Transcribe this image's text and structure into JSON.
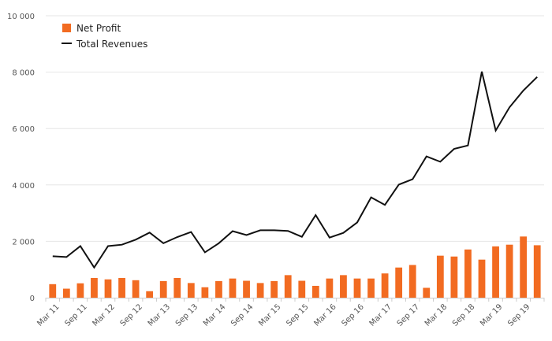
{
  "chart_data": {
    "type": "bar",
    "title": "",
    "xlabel": "",
    "ylabel": "",
    "ylim": [
      0,
      10000
    ],
    "y_ticks": [
      0,
      2000,
      4000,
      6000,
      8000,
      10000
    ],
    "y_tick_labels": [
      "0",
      "2 000",
      "4 000",
      "6 000",
      "8 000",
      "10 000"
    ],
    "grid": true,
    "legend_position": "top-left",
    "categories": [
      "Mar 11",
      "Jun 11",
      "Sep 11",
      "Dec 11",
      "Mar 12",
      "Jun 12",
      "Sep 12",
      "Dec 12",
      "Mar 13",
      "Jun 13",
      "Sep 13",
      "Dec 13",
      "Mar 14",
      "Jun 14",
      "Sep 14",
      "Dec 14",
      "Mar 15",
      "Jun 15",
      "Sep 15",
      "Dec 15",
      "Mar 16",
      "Jun 16",
      "Sep 16",
      "Dec 16",
      "Mar 17",
      "Jun 17",
      "Sep 17",
      "Dec 17",
      "Mar 18",
      "Jun 18",
      "Sep 18",
      "Dec 18",
      "Mar 19",
      "Jun 19",
      "Sep 19",
      "Dec 19"
    ],
    "x_tick_labels": [
      "Mar 11",
      "Sep 11",
      "Mar 12",
      "Sep 12",
      "Mar 13",
      "Sep 13",
      "Mar 14",
      "Sep 14",
      "Mar 15",
      "Sep 15",
      "Mar 16",
      "Sep 16",
      "Mar 17",
      "Sep 17",
      "Mar 18",
      "Sep 18",
      "Mar 19",
      "Sep 19"
    ],
    "series": [
      {
        "name": "Net Profit",
        "type": "bar",
        "color": "#f26b21",
        "values": [
          480,
          320,
          510,
          700,
          650,
          700,
          620,
          230,
          590,
          700,
          520,
          370,
          590,
          680,
          600,
          520,
          590,
          800,
          600,
          420,
          680,
          800,
          680,
          680,
          860,
          1070,
          1160,
          350,
          1490,
          1460,
          1710,
          1350,
          1820,
          1880,
          2170,
          1860
        ]
      },
      {
        "name": "Total Revenues",
        "type": "line",
        "color": "#111111",
        "values": [
          1470,
          1440,
          1830,
          1070,
          1830,
          1880,
          2060,
          2310,
          1930,
          2150,
          2330,
          1610,
          1930,
          2360,
          2220,
          2390,
          2390,
          2370,
          2160,
          2930,
          2130,
          2300,
          2670,
          3560,
          3290,
          4010,
          4200,
          5010,
          4820,
          5280,
          5400,
          8020,
          5930,
          6750,
          7350,
          7830
        ]
      }
    ]
  }
}
